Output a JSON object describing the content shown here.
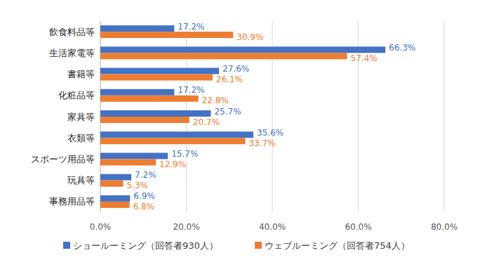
{
  "chart_data": {
    "type": "bar",
    "orientation": "horizontal",
    "categories": [
      "飲食料品等",
      "生活家電等",
      "書籍等",
      "化粧品等",
      "家具等",
      "衣類等",
      "スポーツ用品等",
      "玩具等",
      "事務用品等"
    ],
    "series": [
      {
        "name": "ショールーミング（回答者930人）",
        "color": "#4472c4",
        "values": [
          17.2,
          66.3,
          27.6,
          17.2,
          25.7,
          35.6,
          15.7,
          7.2,
          6.9
        ],
        "value_labels": [
          "17.2%",
          "66.3%",
          "27.6%",
          "17.2%",
          "25.7%",
          "35.6%",
          "15.7%",
          "7.2%",
          "6.9%"
        ]
      },
      {
        "name": "ウェブルーミング（回答者754人）",
        "color": "#ed7d31",
        "values": [
          30.9,
          57.4,
          26.1,
          22.8,
          20.7,
          33.7,
          12.9,
          5.3,
          6.8
        ],
        "value_labels": [
          "30.9%",
          "57.4%",
          "26.1%",
          "22.8%",
          "20.7%",
          "33.7%",
          "12.9%",
          "5.3%",
          "6.8%"
        ]
      }
    ],
    "xlim": [
      0,
      80
    ],
    "xticks": [
      {
        "value": 0,
        "label": "0.0%"
      },
      {
        "value": 20,
        "label": "20.0%"
      },
      {
        "value": 40,
        "label": "40.0%"
      },
      {
        "value": 60,
        "label": "60.0%"
      },
      {
        "value": 80,
        "label": "80.0%"
      }
    ],
    "grid": true,
    "data_labels": true,
    "legend": "bottom"
  }
}
